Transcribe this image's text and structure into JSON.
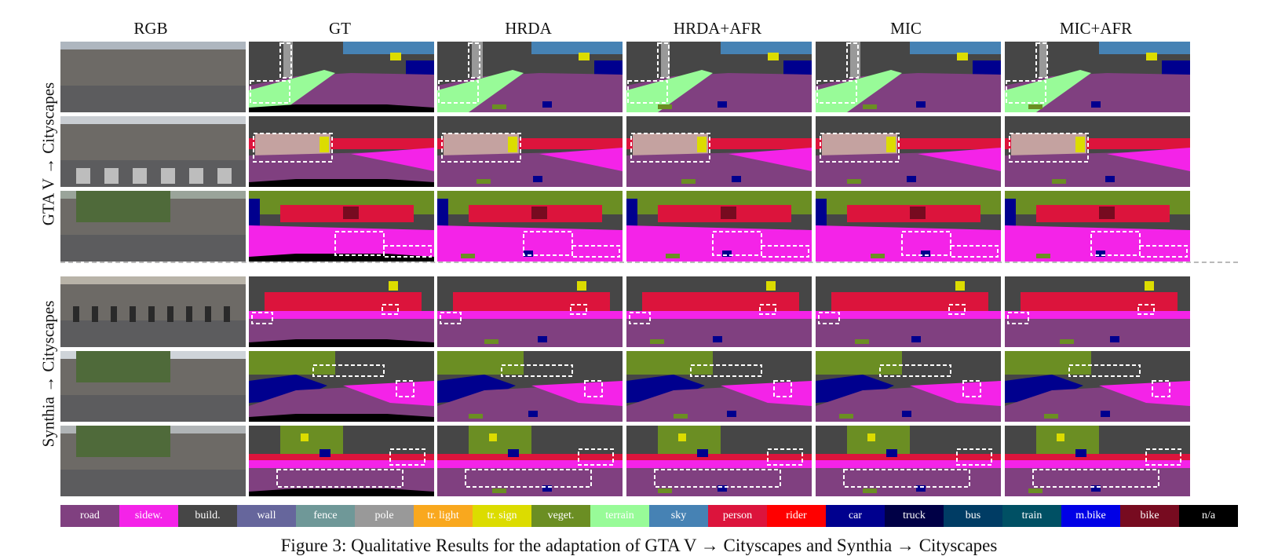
{
  "columns": [
    "RGB",
    "GT",
    "HRDA",
    "HRDA+AFR",
    "MIC",
    "MIC+AFR"
  ],
  "row_groups": [
    {
      "label": "GTA V → Cityscapes",
      "rows": 3
    },
    {
      "label": "Synthia → Cityscapes",
      "rows": 3
    }
  ],
  "legend": [
    {
      "name": "road",
      "color": "#804080"
    },
    {
      "name": "sidew.",
      "color": "#f423e8"
    },
    {
      "name": "build.",
      "color": "#464646"
    },
    {
      "name": "wall",
      "color": "#66669c"
    },
    {
      "name": "fence",
      "color": "#6f9898"
    },
    {
      "name": "pole",
      "color": "#999999"
    },
    {
      "name": "tr. light",
      "color": "#f9a81e"
    },
    {
      "name": "tr. sign",
      "color": "#dcdc00"
    },
    {
      "name": "veget.",
      "color": "#6b8e23"
    },
    {
      "name": "terrain",
      "color": "#98fb98"
    },
    {
      "name": "sky",
      "color": "#4682b4"
    },
    {
      "name": "person",
      "color": "#dc143c"
    },
    {
      "name": "rider",
      "color": "#ff0000"
    },
    {
      "name": "car",
      "color": "#00008e"
    },
    {
      "name": "truck",
      "color": "#000046"
    },
    {
      "name": "bus",
      "color": "#003c64"
    },
    {
      "name": "train",
      "color": "#005064"
    },
    {
      "name": "m.bike",
      "color": "#0000e6"
    },
    {
      "name": "bike",
      "color": "#770b20"
    },
    {
      "name": "n/a",
      "color": "#000000"
    }
  ],
  "caption": "Figure 3: Qualitative Results for the adaptation of GTA V → Cityscapes and Synthia → Cityscapes"
}
